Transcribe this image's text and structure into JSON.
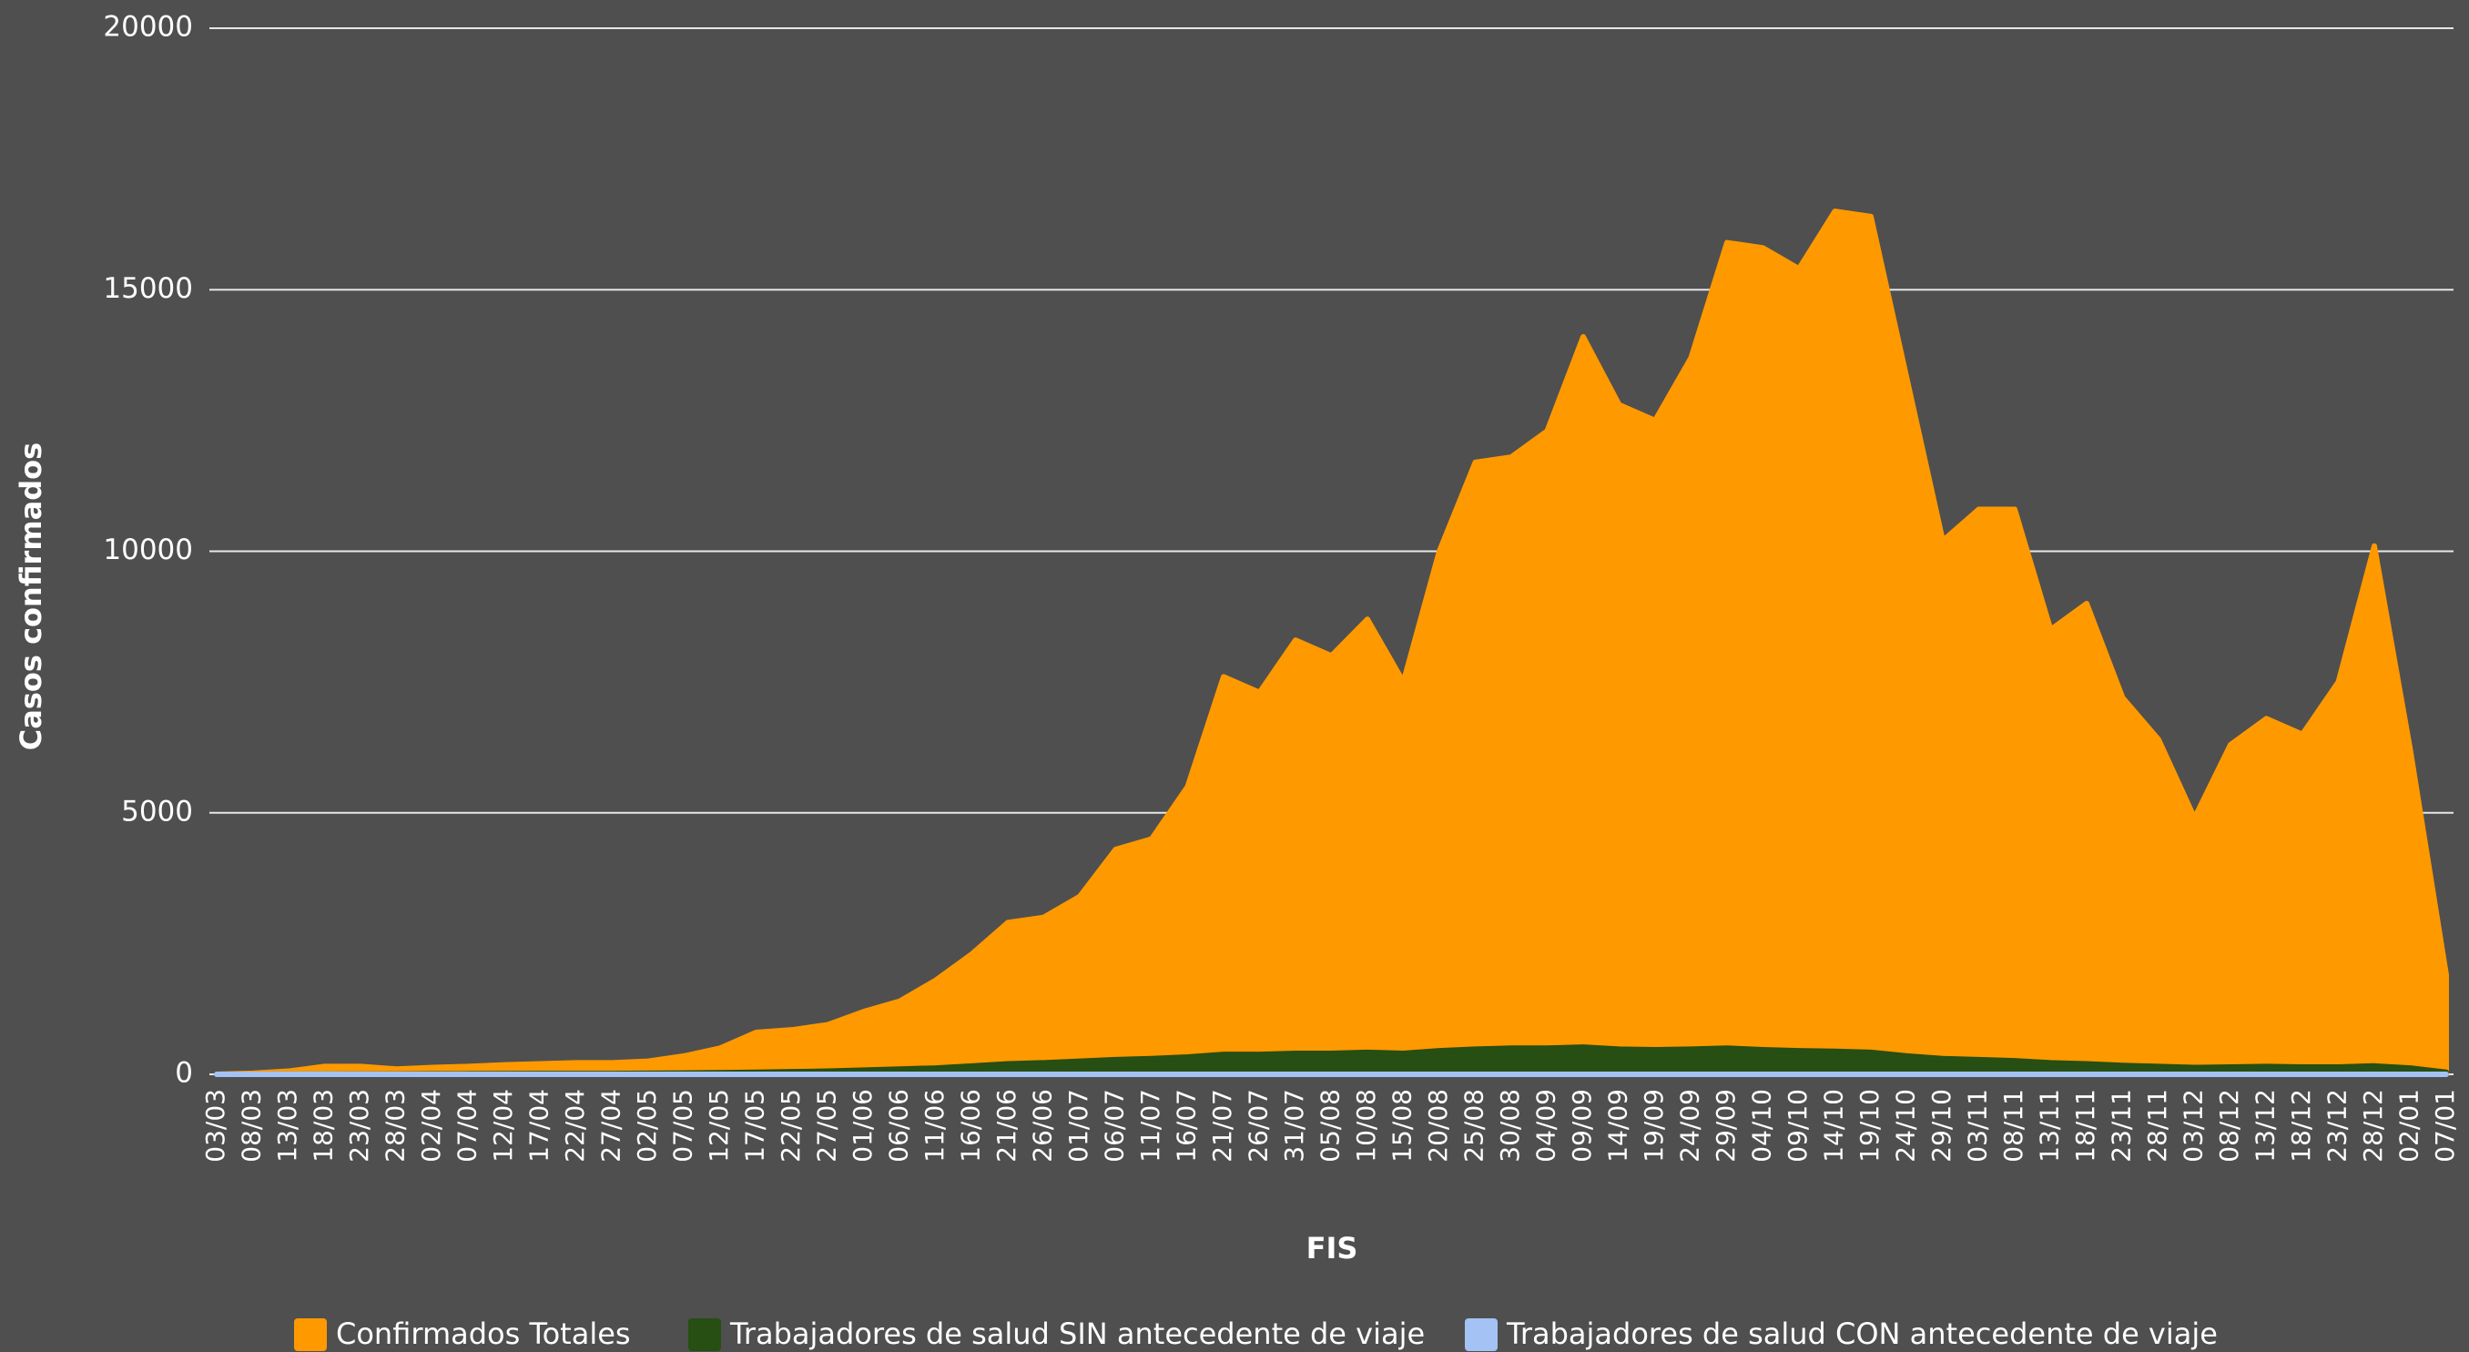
{
  "chart_data": {
    "type": "area",
    "y_label": "Casos confirmados",
    "x_label": "FIS",
    "categories": [
      "03/03",
      "08/03",
      "13/03",
      "18/03",
      "23/03",
      "28/03",
      "02/04",
      "07/04",
      "12/04",
      "17/04",
      "22/04",
      "27/04",
      "02/05",
      "07/05",
      "12/05",
      "17/05",
      "22/05",
      "27/05",
      "01/06",
      "06/06",
      "11/06",
      "16/06",
      "21/06",
      "26/06",
      "01/07",
      "06/07",
      "11/07",
      "16/07",
      "21/07",
      "26/07",
      "31/07",
      "05/08",
      "10/08",
      "15/08",
      "20/08",
      "25/08",
      "30/08",
      "04/09",
      "09/09",
      "14/09",
      "19/09",
      "24/09",
      "29/09",
      "04/10",
      "09/10",
      "14/10",
      "19/10",
      "24/10",
      "29/10",
      "03/11",
      "08/11",
      "13/11",
      "18/11",
      "23/11",
      "28/11",
      "03/12",
      "08/12",
      "13/12",
      "18/12",
      "23/12",
      "28/12",
      "02/01",
      "07/01"
    ],
    "series": [
      {
        "name": "Confirmados Totales",
        "color": "#ff9900",
        "values": [
          0,
          20,
          60,
          150,
          150,
          100,
          130,
          150,
          180,
          200,
          220,
          220,
          250,
          350,
          500,
          800,
          850,
          950,
          1200,
          1400,
          1800,
          2300,
          2900,
          3000,
          3400,
          4300,
          4500,
          5500,
          7600,
          7300,
          8300,
          8000,
          8700,
          7500,
          10000,
          11700,
          11800,
          12300,
          14100,
          12800,
          12500,
          13700,
          15900,
          15800,
          15400,
          16500,
          16400,
          13300,
          10200,
          10800,
          10800,
          8500,
          9000,
          7200,
          6400,
          4900,
          6300,
          6800,
          6500,
          7500,
          10100,
          6200,
          1900
        ]
      },
      {
        "name": "Trabajadores de salud SIN antecedente de viaje",
        "color": "#274e13",
        "values": [
          0,
          0,
          2,
          5,
          5,
          5,
          8,
          10,
          12,
          15,
          15,
          15,
          20,
          25,
          30,
          40,
          50,
          60,
          80,
          100,
          120,
          160,
          200,
          220,
          250,
          280,
          300,
          330,
          380,
          380,
          400,
          400,
          420,
          400,
          450,
          480,
          500,
          500,
          520,
          480,
          470,
          480,
          500,
          470,
          450,
          440,
          420,
          350,
          300,
          280,
          260,
          220,
          200,
          170,
          150,
          130,
          140,
          150,
          140,
          140,
          160,
          120,
          40
        ]
      },
      {
        "name": "Trabajadores de salud CON antecedente de viaje",
        "color": "#a4c2f4",
        "values": [
          0,
          1,
          3,
          4,
          2,
          1,
          0,
          0,
          0,
          0,
          0,
          0,
          0,
          0,
          0,
          0,
          0,
          0,
          0,
          0,
          0,
          0,
          0,
          0,
          0,
          0,
          0,
          0,
          0,
          0,
          0,
          0,
          0,
          0,
          0,
          0,
          0,
          0,
          0,
          0,
          0,
          0,
          0,
          0,
          0,
          0,
          0,
          0,
          0,
          0,
          0,
          0,
          0,
          0,
          0,
          0,
          0,
          0,
          0,
          0,
          0,
          0,
          0
        ]
      }
    ],
    "ylim": [
      0,
      20000
    ],
    "yticks": [
      0,
      5000,
      10000,
      15000,
      20000
    ],
    "grid": true
  }
}
